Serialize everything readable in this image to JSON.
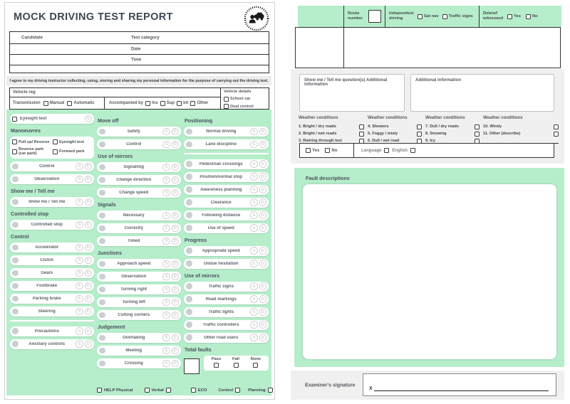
{
  "colors": {
    "mint": "#b6edcb",
    "panel_gray": "#f0f0f0",
    "page_bg": "#ffffff"
  },
  "page_left": {
    "title": "MOCK DRIVING TEST REPORT",
    "info_table": {
      "rows": [
        {
          "left": "Candidate",
          "mid": "Test category"
        },
        {
          "left": "",
          "mid": "Date"
        },
        {
          "left": "",
          "mid": "Time"
        },
        {
          "left": "",
          "mid": ""
        }
      ]
    },
    "agreement": "I agree to my driving instructor collecting, using, storing and sharing my personal information for the purpose of carrying out the driving test.",
    "vehicle": {
      "reg_label": "Vehicle reg",
      "transmission_label": "Transmission",
      "transmission_options": [
        "Manual",
        "Automatic"
      ],
      "accompanied_label": "Accompanied by",
      "accompanied_options": [
        "Ins",
        "Sup",
        "Int",
        "Other"
      ],
      "details_label": "Vehicle details",
      "details_options": [
        "School car",
        "Dual control"
      ]
    },
    "footer": {
      "help": "HELP Physical",
      "verbal": "Verbal",
      "eco": "ECO",
      "control": "Control",
      "planning": "Planning"
    }
  },
  "marking_sheet": {
    "mark_letters": [
      "S",
      "D"
    ],
    "columns": [
      {
        "blocks": [
          {
            "type": "single_row",
            "label": "Eyesight test",
            "marks": [
              "S"
            ]
          },
          {
            "type": "check_group",
            "heading": "Manoeuvres",
            "checks": [
              "Pull up/ Reverse",
              "Eyesight test",
              "Reverse park (car park)",
              "Forward park"
            ]
          },
          {
            "type": "items",
            "items": [
              "Control",
              "Observation"
            ]
          },
          {
            "type": "section",
            "heading": "Show me / Tell me",
            "items": [
              "Show me / Tell me"
            ]
          },
          {
            "type": "section",
            "heading": "Controlled stop",
            "items": [
              "Controlled stop"
            ]
          },
          {
            "type": "section",
            "heading": "Control",
            "items": [
              "Accelerator",
              "Clutch",
              "Gears",
              "Footbrake",
              "Parking brake",
              "Steering"
            ]
          },
          {
            "type": "divider"
          },
          {
            "type": "items",
            "items": [
              "Precautions",
              "Ancillary controls"
            ]
          }
        ]
      },
      {
        "blocks": [
          {
            "type": "section",
            "heading": "Move off",
            "items": [
              "Safety",
              "Control"
            ]
          },
          {
            "type": "section",
            "heading": "Use of mirrors",
            "items": [
              "Signalling",
              "Change direction",
              "Change speed"
            ]
          },
          {
            "type": "section",
            "heading": "Signals",
            "items": [
              "Necessary",
              "Correctly",
              "Timed"
            ]
          },
          {
            "type": "section",
            "heading": "Junctions",
            "items": [
              "Approach speed",
              "Observation",
              "Turning right",
              "Turning left",
              "Cutting corners"
            ]
          },
          {
            "type": "section",
            "heading": "Judgement",
            "items": [
              "Overtaking",
              "Meeting",
              "Crossing"
            ]
          }
        ]
      },
      {
        "blocks": [
          {
            "type": "section",
            "heading": "Positioning",
            "items": [
              "Normal driving",
              "Lane discipline"
            ]
          },
          {
            "type": "divider"
          },
          {
            "type": "items",
            "items": [
              "Pedestrian crossings",
              "Position/normal stop",
              "Awareness planning",
              "Clearance",
              "Following distance",
              "Use of speed"
            ]
          },
          {
            "type": "section",
            "heading": "Progress",
            "items": [
              "Appropriate speed",
              "Undue hesitation"
            ]
          },
          {
            "type": "section",
            "heading": "Use of mirrors",
            "items": [
              "Traffic signs",
              "Road markings",
              "Traffic lights",
              "Traffic controllers",
              "Other road users"
            ]
          },
          {
            "type": "total_faults",
            "heading": "Total faults",
            "options": [
              "Pass",
              "Fail",
              "None"
            ]
          }
        ]
      }
    ]
  },
  "page_right": {
    "top_bar": {
      "route_label": "Route number",
      "independent_label": "Independent driving",
      "independent_options": [
        "Sat nav",
        "Traffic signs"
      ],
      "debrief_label": "Debrief witnessed",
      "debrief_options": [
        "Yes",
        "No"
      ]
    },
    "showme_box_label": "Show me / Tell me question(s) Additional information",
    "additional_box_label": "Additional information",
    "weather": {
      "header": "Weather conditions",
      "columns": [
        {
          "items": [
            "1. Bright / dry roads",
            "2. Bright / wet roads",
            "3. Raining through test"
          ]
        },
        {
          "items": [
            "4. Showers",
            "5. Foggy / misty",
            "6. Dull / wet road"
          ]
        },
        {
          "items": [
            "7. Dull / dry roads",
            "8. Snowing",
            "9. Icy"
          ]
        },
        {
          "items": [
            "10. Windy",
            "11. Other (describe)"
          ],
          "underline_row": true
        }
      ]
    },
    "confirm_bar": {
      "options": [
        "Yes",
        "No"
      ],
      "language_label": "Language",
      "english_label": "English"
    },
    "faults_heading": "Fault descriptions",
    "signature": {
      "label": "Examiner's signature",
      "x": "X"
    }
  }
}
